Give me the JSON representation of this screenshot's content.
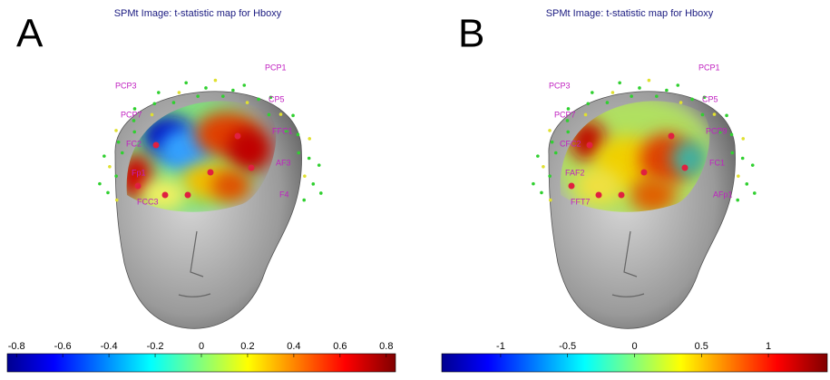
{
  "panels": [
    {
      "label": "A",
      "title": "SPMt Image: t-statistic map  for Hboxy",
      "electrodes": [
        "PCP1",
        "PCP3",
        "CP5",
        "PCP7",
        "FFC1",
        "FC2",
        "AF3",
        "Fp1",
        "F4",
        "FCC3"
      ],
      "colorbar": {
        "lim": [
          -0.84,
          0.84
        ],
        "ticks": [
          -0.8,
          -0.6,
          -0.4,
          -0.2,
          0,
          0.2,
          0.4,
          0.6,
          0.8
        ]
      }
    },
    {
      "label": "B",
      "title": "SPMt Image: t-statistic map  for Hboxy",
      "electrodes": [
        "PCP1",
        "PCP3",
        "CP5",
        "PCP7",
        "PCP9",
        "CFC2",
        "FC1",
        "FAF2",
        "AFp1",
        "FFT7"
      ],
      "colorbar": {
        "lim": [
          -1.44,
          1.44
        ],
        "ticks": [
          -1,
          -0.5,
          0,
          0.5,
          1
        ]
      }
    }
  ]
}
